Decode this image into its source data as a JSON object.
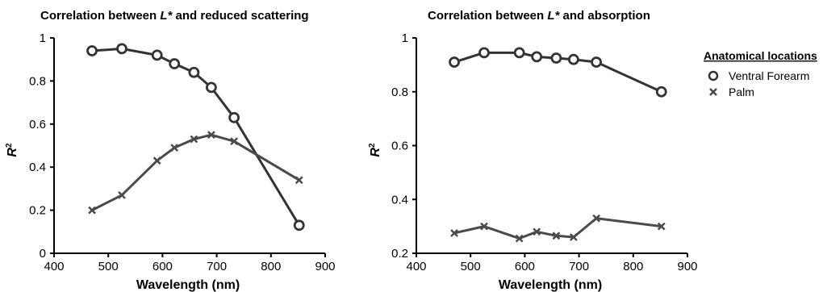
{
  "chart_data": [
    {
      "type": "line",
      "title_pre": "Correlation between ",
      "title_var": "L*",
      "title_post": " and  reduced scattering",
      "xlabel": "Wavelength (nm)",
      "ylabel": "R",
      "ylabel_sup": "2",
      "xlim": [
        400,
        900
      ],
      "ylim": [
        0,
        1
      ],
      "xticks": [
        "400",
        "500",
        "600",
        "700",
        "800",
        "900"
      ],
      "yticks": [
        "0",
        "0.2",
        "0.4",
        "0.6",
        "0.8",
        "1"
      ],
      "x": [
        470,
        525,
        590,
        622,
        658,
        690,
        732,
        852
      ],
      "series": [
        {
          "name": "Ventral Forearm",
          "marker": "circle",
          "values": [
            0.94,
            0.95,
            0.92,
            0.88,
            0.84,
            0.77,
            0.63,
            0.13
          ]
        },
        {
          "name": "Palm",
          "marker": "x",
          "values": [
            0.2,
            0.27,
            0.43,
            0.49,
            0.53,
            0.55,
            0.52,
            0.34
          ]
        }
      ]
    },
    {
      "type": "line",
      "title_pre": "Correlation between ",
      "title_var": "L*",
      "title_post": " and  absorption",
      "xlabel": "Wavelength (nm)",
      "ylabel": "R",
      "ylabel_sup": "2",
      "xlim": [
        400,
        900
      ],
      "ylim": [
        0.2,
        1
      ],
      "xticks": [
        "400",
        "500",
        "600",
        "700",
        "800",
        "900"
      ],
      "yticks": [
        "0.2",
        "0.4",
        "0.6",
        "0.8",
        "1"
      ],
      "x": [
        470,
        525,
        590,
        622,
        658,
        690,
        732,
        852
      ],
      "series": [
        {
          "name": "Ventral Forearm",
          "marker": "circle",
          "values": [
            0.91,
            0.945,
            0.945,
            0.93,
            0.925,
            0.92,
            0.91,
            0.8
          ]
        },
        {
          "name": "Palm",
          "marker": "x",
          "values": [
            0.275,
            0.3,
            0.255,
            0.28,
            0.265,
            0.26,
            0.33,
            0.3
          ]
        }
      ]
    }
  ],
  "legend": {
    "title": "Anatomical locations",
    "items": [
      {
        "label": "Ventral Forearm",
        "marker": "circle"
      },
      {
        "label": "Palm",
        "marker": "x"
      }
    ]
  },
  "colors": {
    "forearm": "#333333",
    "palm": "#4a4a4a",
    "axis": "#000000"
  }
}
